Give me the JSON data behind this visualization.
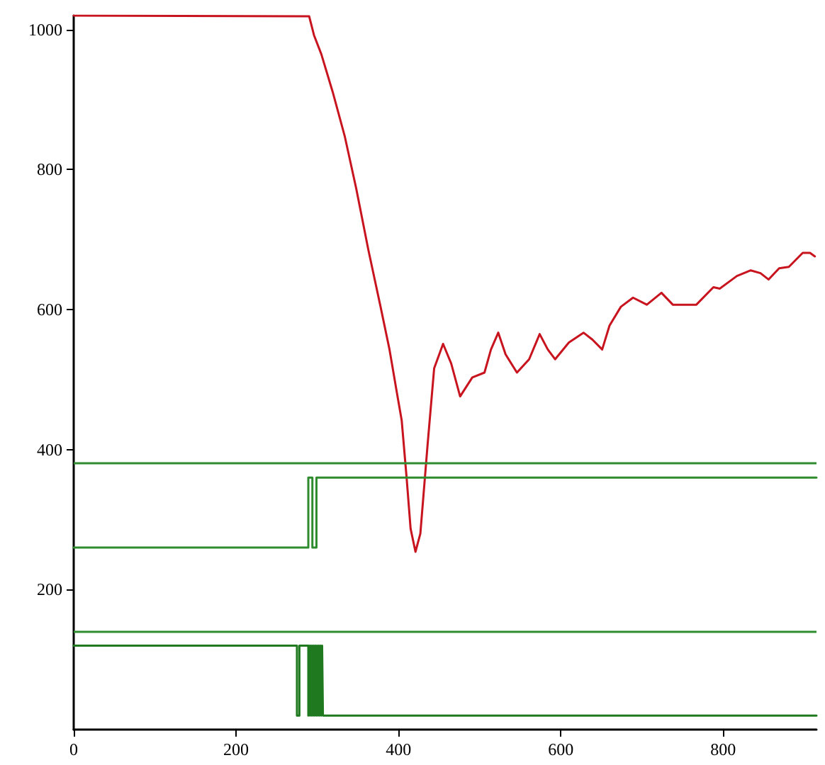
{
  "chart_data": {
    "type": "line",
    "xlim": [
      0,
      915
    ],
    "ylim": [
      0,
      1020
    ],
    "xticks": [
      0,
      200,
      400,
      600,
      800
    ],
    "yticks": [
      200,
      400,
      600,
      800,
      1000
    ],
    "marker": "none",
    "ref_lines": [
      {
        "axis": "y",
        "value": 380,
        "color": "#2e8b2e"
      },
      {
        "axis": "y",
        "value": 140,
        "color": "#2e8b2e"
      }
    ],
    "series": [
      {
        "color": "#c8141e",
        "x": [
          0,
          290,
          296,
          305,
          319,
          334,
          348,
          363,
          378,
          389,
          398,
          404,
          410,
          415,
          421,
          427,
          436,
          444,
          455,
          465,
          476,
          491,
          506,
          514,
          523,
          532,
          546,
          561,
          574,
          584,
          593,
          610,
          628,
          639,
          651,
          660,
          674,
          689,
          706,
          724,
          738,
          753,
          767,
          788,
          796,
          817,
          834,
          846,
          856,
          869,
          881,
          898,
          907,
          913
        ],
        "values": [
          1020,
          1019,
          992,
          965,
          911,
          847,
          773,
          685,
          604,
          543,
          482,
          442,
          361,
          287,
          254,
          280,
          408,
          516,
          551,
          523,
          476,
          503,
          510,
          543,
          567,
          536,
          510,
          529,
          565,
          543,
          529,
          553,
          567,
          557,
          543,
          577,
          604,
          617,
          607,
          624,
          607,
          607,
          607,
          632,
          630,
          648,
          656,
          652,
          643,
          659,
          661,
          681,
          681,
          676
        ]
      },
      {
        "type": "step",
        "color": "#2e8b2e",
        "x": [
          0,
          289,
          294,
          299,
          915
        ],
        "values": [
          260,
          360,
          260,
          360,
          360
        ]
      },
      {
        "type": "step",
        "color": "#1f7a1f",
        "x": [
          0,
          275,
          278,
          289,
          290,
          291,
          292,
          293,
          294,
          295,
          296,
          297,
          298,
          299,
          300,
          301,
          302,
          303,
          304,
          305,
          306,
          307,
          915
        ],
        "values": [
          120,
          20,
          120,
          20,
          120,
          20,
          120,
          20,
          120,
          20,
          120,
          20,
          120,
          20,
          120,
          20,
          120,
          20,
          120,
          20,
          120,
          20,
          20
        ]
      }
    ]
  }
}
